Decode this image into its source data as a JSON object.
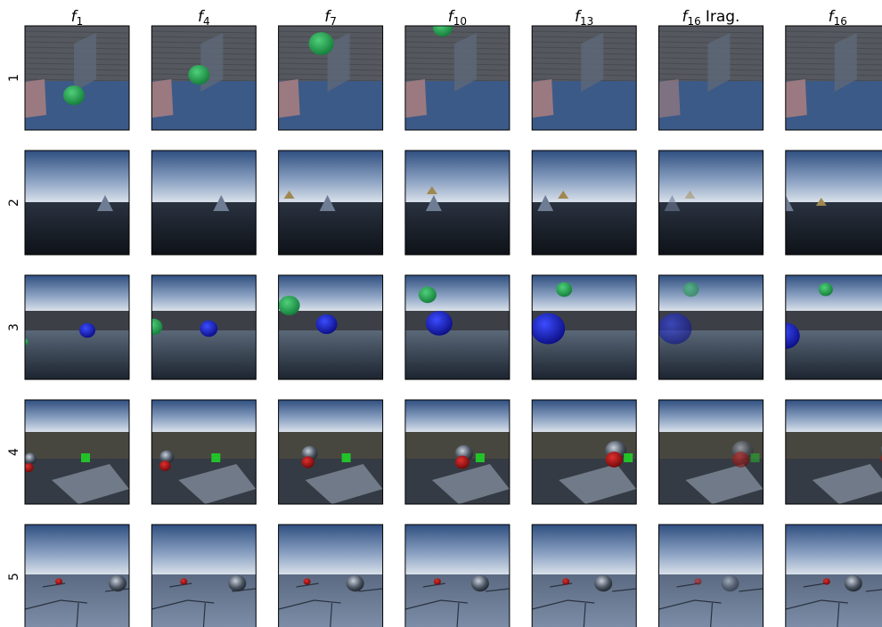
{
  "columns": [
    {
      "symbol": "f",
      "subscript": "1"
    },
    {
      "symbol": "f",
      "subscript": "4"
    },
    {
      "symbol": "f",
      "subscript": "7"
    },
    {
      "symbol": "f",
      "subscript": "10"
    },
    {
      "symbol": "f",
      "subscript": "13"
    },
    {
      "symbol": "f",
      "subscript": "16",
      "suffix": "Irag."
    },
    {
      "symbol": "f",
      "subscript": "16"
    }
  ],
  "rows": [
    "1",
    "2",
    "3",
    "4",
    "5"
  ]
}
